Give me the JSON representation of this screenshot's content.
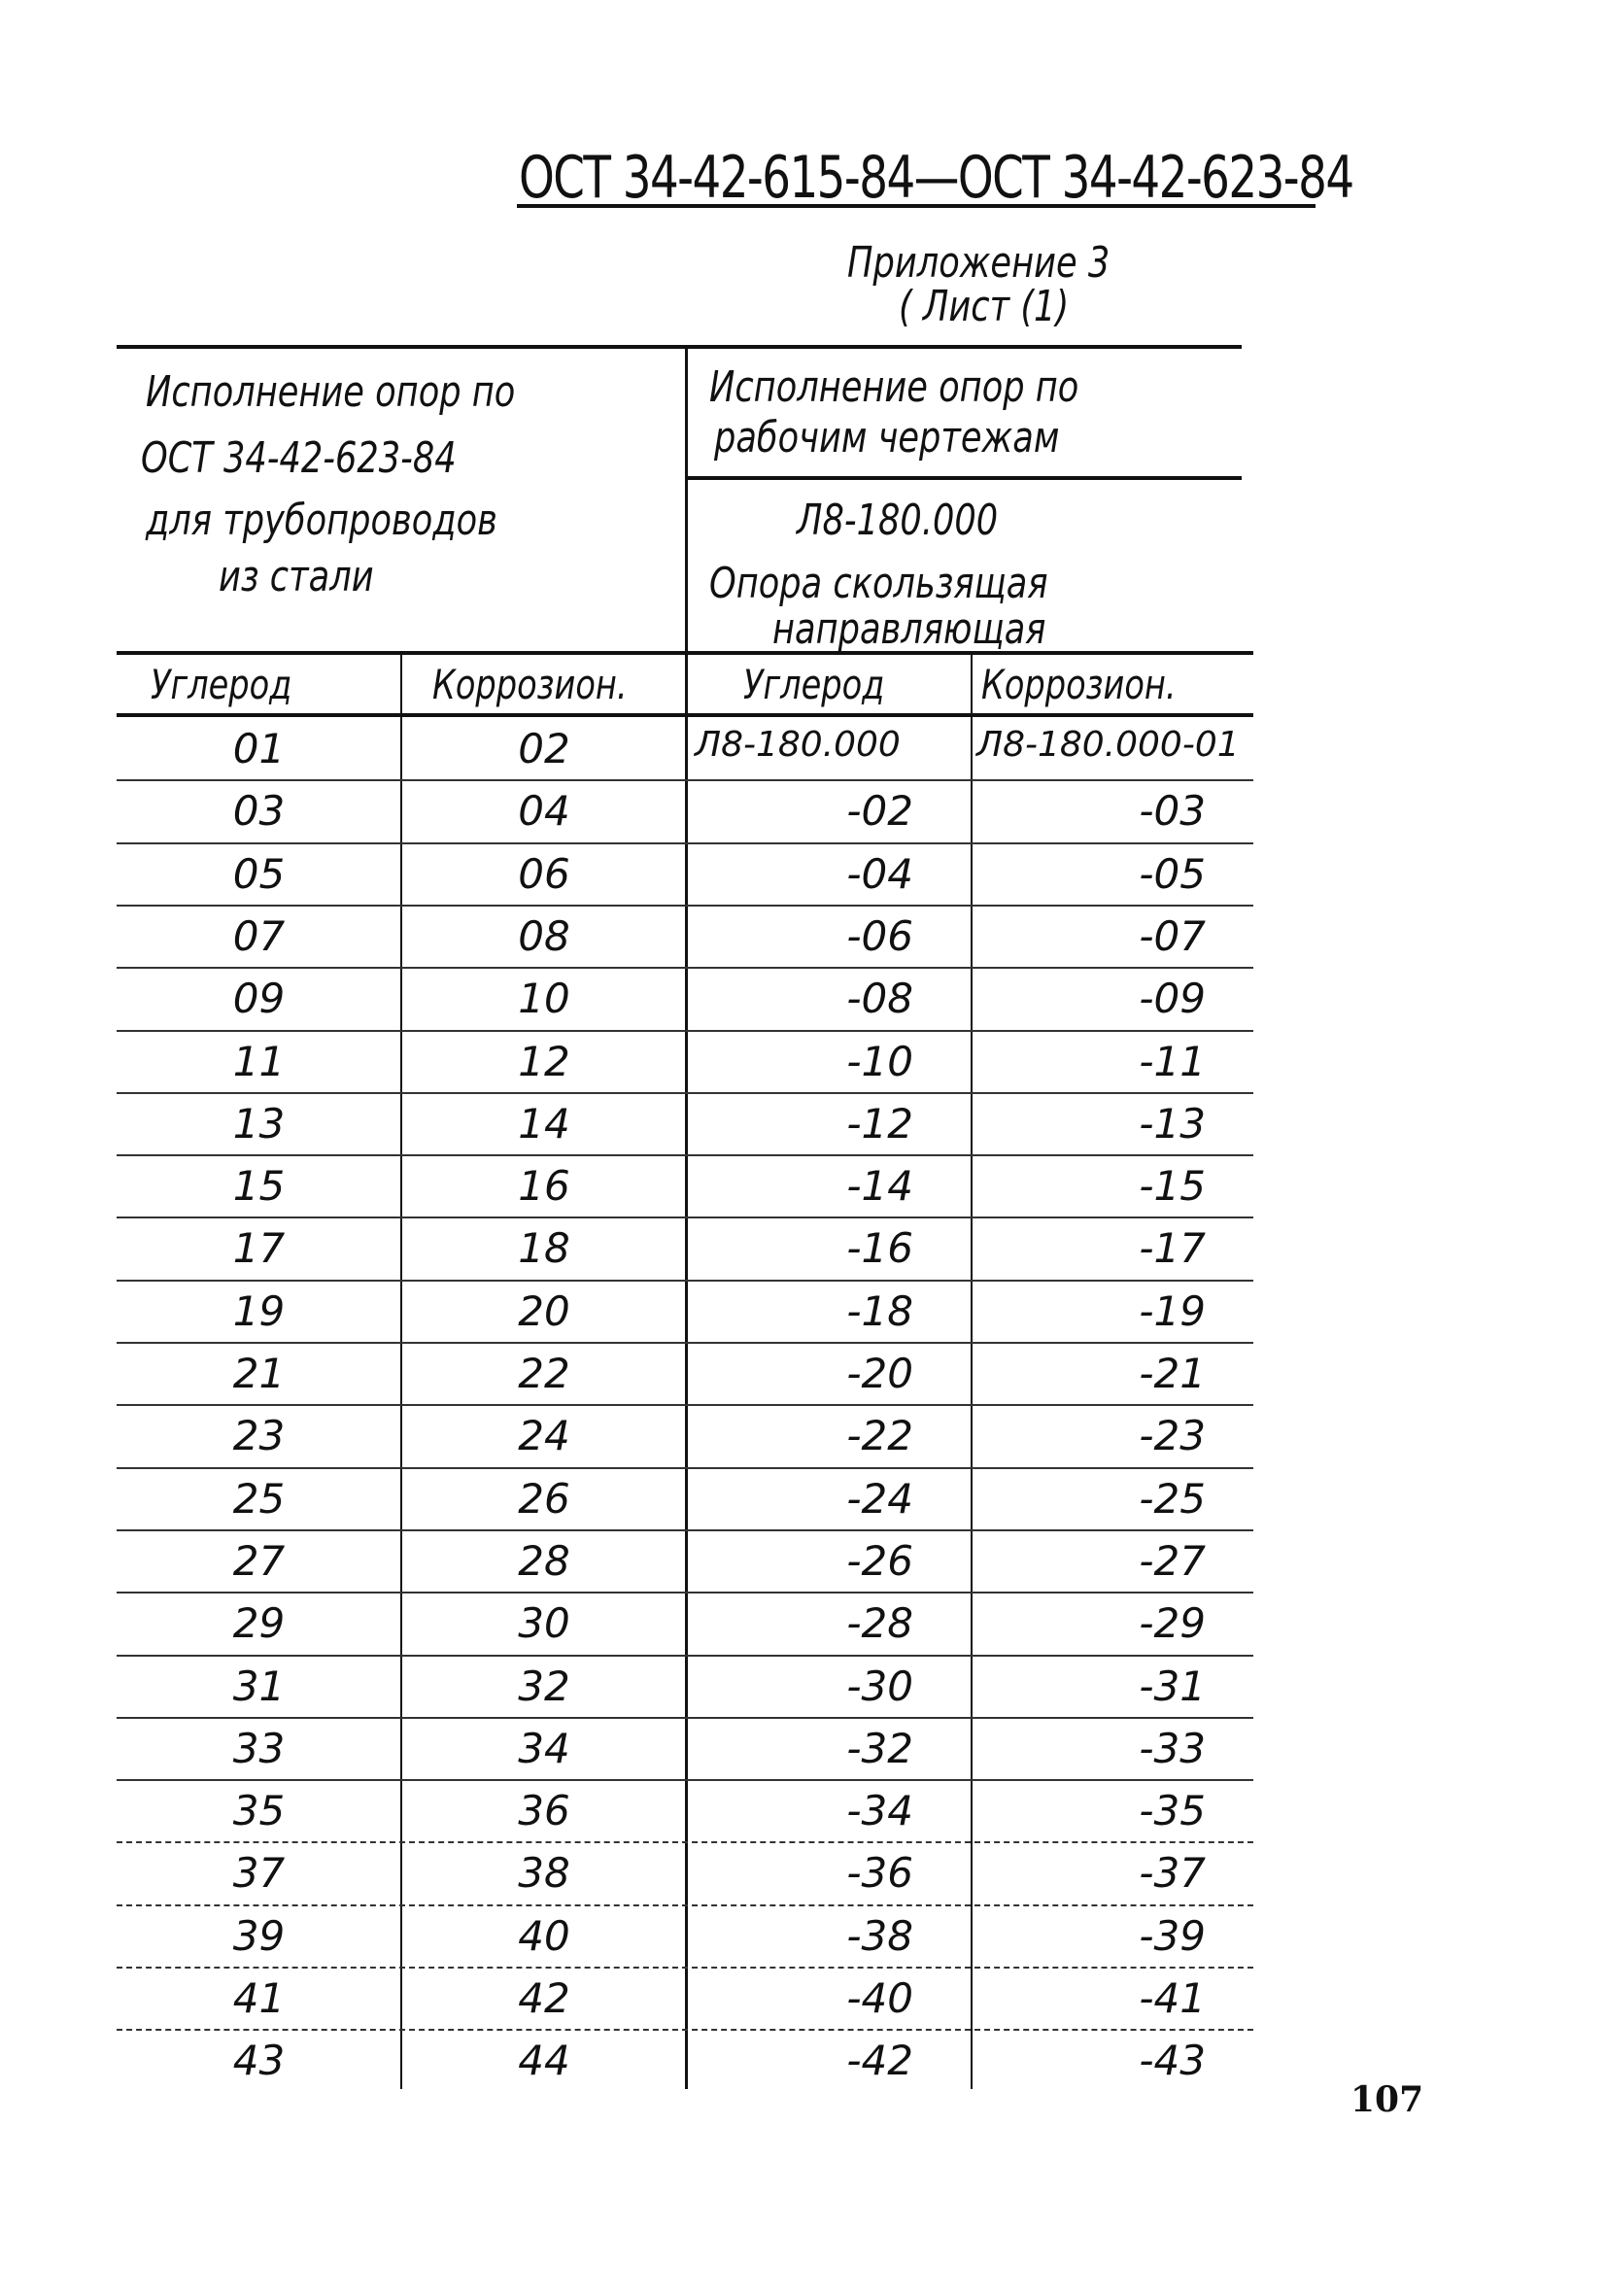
{
  "header": {
    "doc_code": "ОСТ 34-42-615-84—ОСТ 34-42-623-84",
    "appendix": "Приложение 3",
    "sheet": "( Лист (1)"
  },
  "table": {
    "left_header": [
      "Исполнение  опор  по",
      "ОСТ 34-42-623-84",
      "для  трубопроводов",
      "из  стали"
    ],
    "right_header_top": [
      "Исполнение  опор  по",
      "рабочим  чертежам"
    ],
    "right_header_bottom": [
      "Л8-180.000",
      "Опора  скользящая",
      "направляющая"
    ],
    "columns": [
      "Углерод",
      "Коррозион.",
      "Углерод",
      "Коррозион."
    ],
    "rows": [
      [
        "01",
        "02",
        "Л8-180.000",
        "Л8-180.000-01"
      ],
      [
        "03",
        "04",
        "-02",
        "-03"
      ],
      [
        "05",
        "06",
        "-04",
        "-05"
      ],
      [
        "07",
        "08",
        "-06",
        "-07"
      ],
      [
        "09",
        "10",
        "-08",
        "-09"
      ],
      [
        "11",
        "12",
        "-10",
        "-11"
      ],
      [
        "13",
        "14",
        "-12",
        "-13"
      ],
      [
        "15",
        "16",
        "-14",
        "-15"
      ],
      [
        "17",
        "18",
        "-16",
        "-17"
      ],
      [
        "19",
        "20",
        "-18",
        "-19"
      ],
      [
        "21",
        "22",
        "-20",
        "-21"
      ],
      [
        "23",
        "24",
        "-22",
        "-23"
      ],
      [
        "25",
        "26",
        "-24",
        "-25"
      ],
      [
        "27",
        "28",
        "-26",
        "-27"
      ],
      [
        "29",
        "30",
        "-28",
        "-29"
      ],
      [
        "31",
        "32",
        "-30",
        "-31"
      ],
      [
        "33",
        "34",
        "-32",
        "-33"
      ],
      [
        "35",
        "36",
        "-34",
        "-35"
      ],
      [
        "37",
        "38",
        "-36",
        "-37"
      ],
      [
        "39",
        "40",
        "-38",
        "-39"
      ],
      [
        "41",
        "42",
        "-40",
        "-41"
      ],
      [
        "43",
        "44",
        "-42",
        "-43"
      ]
    ]
  },
  "page_number": "107"
}
